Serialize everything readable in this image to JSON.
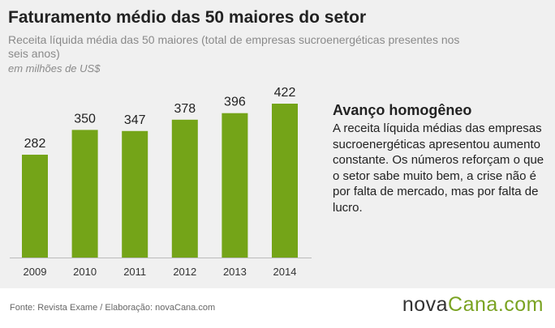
{
  "header": {
    "title": "Faturamento médio das 50 maiores do setor",
    "subtitle": "Receita líquida média das 50 maiores (total de empresas sucroenergéticas presentes nos seis anos)",
    "unit": "em milhões de US$"
  },
  "chart_data": {
    "type": "bar",
    "title": "Faturamento médio das 50 maiores do setor",
    "subtitle": "Receita líquida média das 50 maiores (total de empresas sucroenergéticas presentes nos seis anos)",
    "xlabel": "",
    "ylabel": "",
    "unit": "em milhões de US$",
    "categories": [
      "2009",
      "2010",
      "2011",
      "2012",
      "2013",
      "2014"
    ],
    "values": [
      282,
      350,
      347,
      378,
      396,
      422
    ],
    "ylim": [
      0,
      422
    ],
    "grid": false,
    "legend": "none",
    "bar_color": "#74a418",
    "baseline_color": "#bbbbbb"
  },
  "note": {
    "title": "Avanço homogêneo",
    "body": "A receita líquida médias das empresas sucroenergéticas apresentou aumento constante. Os números reforçam o que o setor sabe muito bem, a crise não é por falta de mercado, mas por falta de lucro."
  },
  "footer": {
    "source": "Fonte: Revista Exame  / Elaboração: novaCana.com",
    "logo_part1": "nova",
    "logo_part2": "Cana",
    "logo_part3": ".com"
  },
  "colors": {
    "panel_bg": "#f0f0f0",
    "bar": "#74a418",
    "logo_green": "#7aa322",
    "text_dark": "#222222",
    "text_muted": "#8a8a8a"
  }
}
